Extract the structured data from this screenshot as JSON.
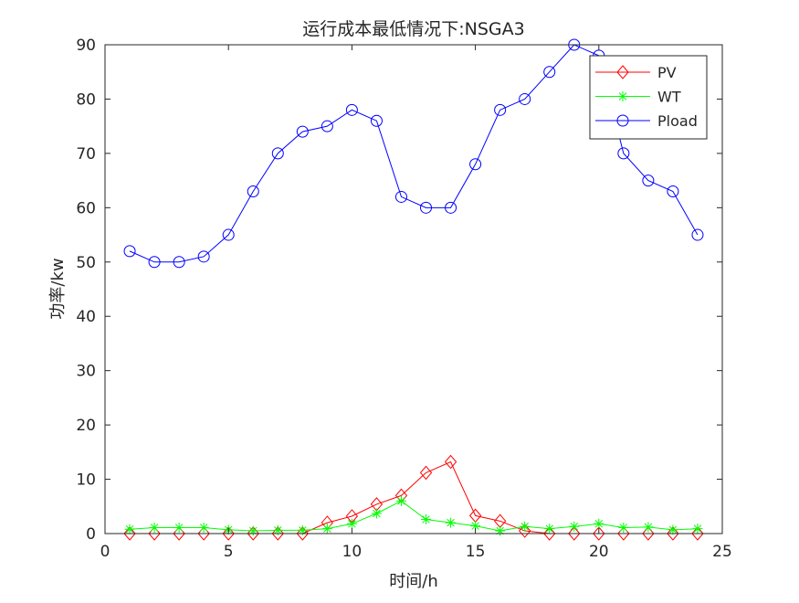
{
  "chart_data": {
    "type": "line",
    "title": "运行成本最低情况下:NSGA3",
    "xlabel": "时间/h",
    "ylabel": "功率/kw",
    "xlim": [
      0,
      25
    ],
    "ylim": [
      0,
      90
    ],
    "xticks": [
      0,
      5,
      10,
      15,
      20,
      25
    ],
    "yticks": [
      0,
      10,
      20,
      30,
      40,
      50,
      60,
      70,
      80,
      90
    ],
    "grid": false,
    "legend_position": "top-right",
    "x": [
      1,
      2,
      3,
      4,
      5,
      6,
      7,
      8,
      9,
      10,
      11,
      12,
      13,
      14,
      15,
      16,
      17,
      18,
      19,
      20,
      21,
      22,
      23,
      24
    ],
    "series": [
      {
        "name": "PV",
        "color": "#ff0000",
        "marker": "diamond",
        "values": [
          0,
          0,
          0,
          0,
          0,
          0,
          0,
          0,
          2,
          3.2,
          5.4,
          7,
          11.2,
          13.2,
          3.3,
          2.3,
          0.5,
          0,
          0,
          0,
          0,
          0,
          0,
          0
        ]
      },
      {
        "name": "WT",
        "color": "#00ff00",
        "marker": "asterisk",
        "values": [
          0.8,
          1.1,
          1.1,
          1.1,
          0.7,
          0.5,
          0.6,
          0.6,
          0.9,
          1.8,
          3.7,
          6,
          2.6,
          2,
          1.4,
          0.5,
          1.3,
          0.9,
          1.3,
          1.8,
          1.1,
          1.2,
          0.7,
          0.9
        ]
      },
      {
        "name": "Pload",
        "color": "#0000ff",
        "marker": "circle",
        "values": [
          52,
          50,
          50,
          51,
          55,
          63,
          70,
          74,
          75,
          78,
          76,
          62,
          60,
          60,
          68,
          78,
          80,
          85,
          90,
          88,
          70,
          65,
          63,
          55
        ]
      }
    ]
  }
}
